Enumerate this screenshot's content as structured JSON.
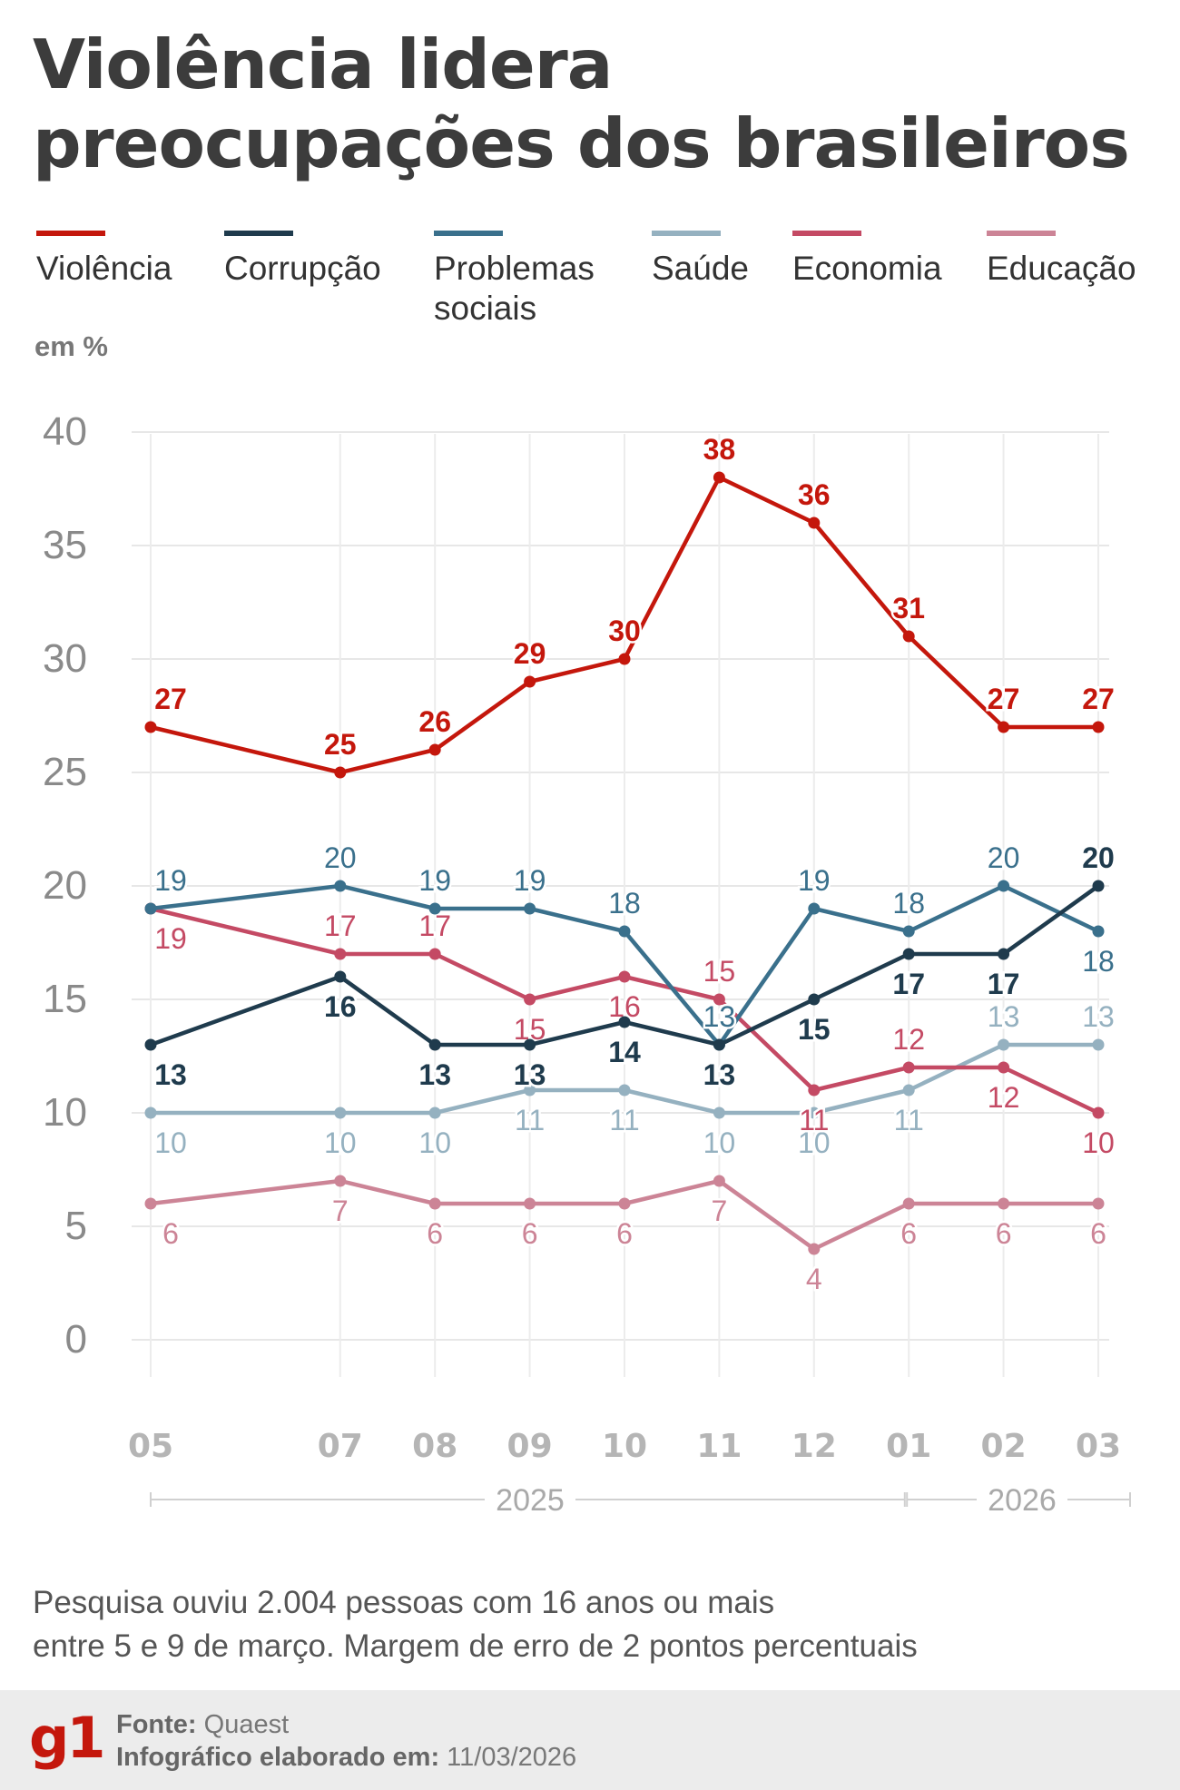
{
  "title_line1": "Violência lidera",
  "title_line2": "preocupações dos brasileiros",
  "unit": "em %",
  "note_line1": "Pesquisa ouviu 2.004 pessoas com 16 anos ou mais",
  "note_line2": "entre 5 e 9 de março. Margem de erro de 2 pontos percentuais",
  "footer": {
    "logo": "g1",
    "source_label": "Fonte:",
    "source_value": "Quaest",
    "date_label": "Infográfico elaborado em:",
    "date_value": "11/03/2026"
  },
  "legend": [
    {
      "name": "Violência",
      "line2": ""
    },
    {
      "name": "Corrupção",
      "line2": ""
    },
    {
      "name": "Problemas",
      "line2": "sociais"
    },
    {
      "name": "Saúde",
      "line2": ""
    },
    {
      "name": "Economia",
      "line2": ""
    },
    {
      "name": "Educação",
      "line2": ""
    }
  ],
  "chart_data": {
    "type": "line",
    "title": "Violência lidera preocupações dos brasileiros",
    "ylabel": "em %",
    "ylim": [
      0,
      40
    ],
    "yticks": [
      0,
      5,
      10,
      15,
      20,
      25,
      30,
      35,
      40
    ],
    "x": [
      5,
      7,
      8,
      9,
      10,
      11,
      12,
      13,
      14,
      15
    ],
    "categories": [
      "05",
      "07",
      "08",
      "09",
      "10",
      "11",
      "12",
      "01",
      "02",
      "03"
    ],
    "years": [
      {
        "label": "2025",
        "from": 5,
        "to": 12
      },
      {
        "label": "2026",
        "from": 13,
        "to": 15
      }
    ],
    "series": [
      {
        "name": "Violência",
        "color": "#c4170c",
        "values": [
          27,
          25,
          26,
          29,
          30,
          38,
          36,
          31,
          27,
          27
        ]
      },
      {
        "name": "Corrupção",
        "color": "#1f3b4d",
        "values": [
          13,
          16,
          13,
          13,
          14,
          13,
          15,
          17,
          17,
          20
        ]
      },
      {
        "name": "Problemas sociais",
        "color": "#3a708c",
        "values": [
          19,
          20,
          19,
          19,
          18,
          13,
          19,
          18,
          20,
          18
        ]
      },
      {
        "name": "Saúde",
        "color": "#95b1c0",
        "values": [
          10,
          10,
          10,
          11,
          11,
          10,
          10,
          11,
          13,
          13
        ]
      },
      {
        "name": "Economia",
        "color": "#c44a64",
        "values": [
          19,
          17,
          17,
          15,
          16,
          15,
          11,
          12,
          12,
          10
        ]
      },
      {
        "name": "Educação",
        "color": "#cc8496",
        "values": [
          6,
          7,
          6,
          6,
          6,
          7,
          4,
          6,
          6,
          6
        ]
      }
    ]
  }
}
